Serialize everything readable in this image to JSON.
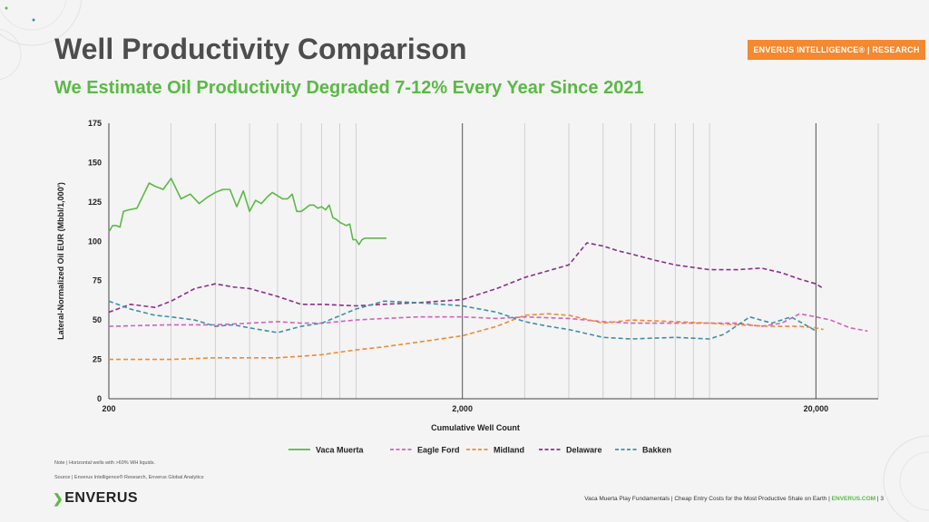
{
  "header": {
    "title": "Well Productivity Comparison",
    "subtitle": "We Estimate Oil Productivity Degraded 7-12% Every Year Since 2021",
    "badge": "ENVERUS INTELLIGENCE® | RESEARCH"
  },
  "notes": {
    "note": "Note | Horizontal wells with >60% WH liquids.",
    "source": "Source | Enverus Intelligence® Research, Enverus Global Analytics"
  },
  "logo": {
    "text": "ENVERUS"
  },
  "footer": {
    "text": "Vaca Muerta Play Fundamentals | Cheap Entry Costs for the Most Productive Shale on Earth | ",
    "brand": "ENVERUS.COM",
    "page": " | 3"
  },
  "colors": {
    "accent": "#5bb946",
    "badge": "#f4892f"
  },
  "chart_data": {
    "type": "line",
    "xlabel": "Cumulative Well Count",
    "ylabel": "Lateral-Normalized Oil EUR (Mbbl/1,000')",
    "xscale": "log",
    "xlim": [
      200,
      30000
    ],
    "ylim": [
      0,
      175
    ],
    "yticks": [
      0,
      25,
      50,
      75,
      100,
      125,
      150,
      175
    ],
    "xtick_labels": [
      {
        "value": 200,
        "label": "200"
      },
      {
        "value": 2000,
        "label": "2,000"
      },
      {
        "value": 20000,
        "label": "20,000"
      }
    ],
    "legend_position": "bottom",
    "series": [
      {
        "name": "Vaca Muerta",
        "color": "#5bb946",
        "dash": "solid",
        "x": [
          200,
          205,
          210,
          215,
          220,
          228,
          240,
          260,
          270,
          285,
          300,
          320,
          340,
          360,
          380,
          400,
          420,
          440,
          460,
          480,
          500,
          520,
          540,
          560,
          580,
          600,
          620,
          640,
          660,
          680,
          700,
          720,
          740,
          760,
          780,
          800,
          820,
          840,
          860,
          880,
          900,
          920,
          940,
          960,
          980,
          1000,
          1020,
          1040,
          1060,
          1080,
          1100,
          1120,
          1140,
          1160,
          1180,
          1200,
          1220
        ],
        "y": [
          106,
          110,
          110,
          109,
          119,
          120,
          121,
          137,
          135,
          133,
          140,
          127,
          130,
          124,
          128,
          131,
          133,
          133,
          122,
          132,
          119,
          126,
          124,
          128,
          131,
          129,
          127,
          127,
          130,
          119,
          119,
          121,
          123,
          123,
          121,
          122,
          120,
          123,
          115,
          114,
          112,
          111,
          110,
          111,
          101,
          101,
          98,
          101,
          102,
          102,
          102,
          102,
          102,
          102,
          102,
          102,
          102
        ]
      },
      {
        "name": "Eagle Ford",
        "color": "#d063bd",
        "dash": "5,3",
        "x": [
          200,
          300,
          400,
          500,
          600,
          700,
          800,
          1000,
          1200,
          1500,
          2000,
          2500,
          3000,
          4000,
          5000,
          6000,
          8000,
          10000,
          12000,
          14000,
          16000,
          18000,
          20000,
          22000,
          25000,
          28000
        ],
        "y": [
          46,
          47,
          47,
          48,
          49,
          48,
          48,
          50,
          51,
          52,
          52,
          51,
          52,
          51,
          49,
          48,
          48,
          48,
          48,
          46,
          48,
          54,
          52,
          50,
          45,
          43
        ]
      },
      {
        "name": "Midland",
        "color": "#f4892f",
        "dash": "5,3",
        "x": [
          200,
          300,
          400,
          500,
          600,
          700,
          800,
          1000,
          1200,
          1500,
          2000,
          2500,
          3000,
          3500,
          4000,
          5000,
          6000,
          8000,
          10000,
          12000,
          15000,
          18000,
          20000,
          21000
        ],
        "y": [
          25,
          25,
          26,
          26,
          26,
          27,
          28,
          31,
          33,
          36,
          40,
          46,
          53,
          54,
          53,
          48,
          50,
          49,
          48,
          47,
          46,
          46,
          45,
          44
        ]
      },
      {
        "name": "Delaware",
        "color": "#8b2f8a",
        "dash": "5,3",
        "x": [
          200,
          230,
          270,
          300,
          350,
          400,
          450,
          500,
          600,
          700,
          800,
          1000,
          1200,
          1500,
          2000,
          2500,
          3000,
          4000,
          4500,
          5000,
          5500,
          6000,
          7000,
          8000,
          10000,
          12000,
          14000,
          16000,
          18000,
          20000,
          21000
        ],
        "y": [
          55,
          60,
          58,
          62,
          70,
          73,
          71,
          70,
          65,
          60,
          60,
          59,
          60,
          61,
          63,
          70,
          77,
          85,
          99,
          97,
          94,
          92,
          88,
          85,
          82,
          82,
          83,
          80,
          76,
          73,
          70
        ]
      },
      {
        "name": "Bakken",
        "color": "#3f8fa6",
        "dash": "5,3",
        "x": [
          200,
          230,
          270,
          300,
          350,
          400,
          450,
          500,
          600,
          700,
          800,
          1000,
          1200,
          1500,
          2000,
          2500,
          3000,
          3500,
          4000,
          5000,
          6000,
          8000,
          10000,
          11000,
          13000,
          15000,
          17000,
          19000,
          20000
        ],
        "y": [
          62,
          57,
          53,
          52,
          50,
          46,
          47,
          45,
          42,
          46,
          48,
          57,
          62,
          61,
          59,
          55,
          49,
          46,
          44,
          39,
          38,
          39,
          38,
          41,
          52,
          48,
          52,
          46,
          43
        ]
      }
    ]
  }
}
